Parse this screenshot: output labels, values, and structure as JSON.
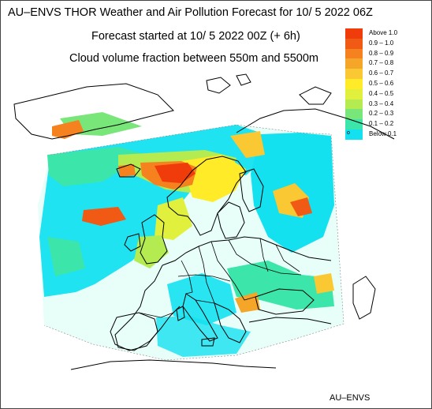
{
  "header": {
    "title": "AU–ENVS THOR Weather and Air Pollution Forecast for 10/ 5 2022  06Z",
    "started": "Forecast started at 10/ 5 2022  00Z (+ 6h)",
    "field": "Cloud volume fraction between 550m and 5500m"
  },
  "legend": {
    "items": [
      {
        "label": "Above   1.0",
        "color": "#f03c0a"
      },
      {
        "label": "0.9  –  1.0",
        "color": "#f05a14"
      },
      {
        "label": "0.8  –  0.9",
        "color": "#f5821e"
      },
      {
        "label": "0.7  –  0.8",
        "color": "#f5a528"
      },
      {
        "label": "0.6  –  0.7",
        "color": "#fac832"
      },
      {
        "label": "0.5  –  0.6",
        "color": "#ffeb28"
      },
      {
        "label": "0.4  –  0.5",
        "color": "#e1f03c"
      },
      {
        "label": "0.3  –  0.4",
        "color": "#b4eb50"
      },
      {
        "label": "0.2  –  0.3",
        "color": "#78e678"
      },
      {
        "label": "0.1  –  0.2",
        "color": "#3ce6aa"
      },
      {
        "label": "Below   0.1",
        "color": "#14e1f0",
        "marker": "o"
      }
    ]
  },
  "credit": "AU–ENVS"
}
